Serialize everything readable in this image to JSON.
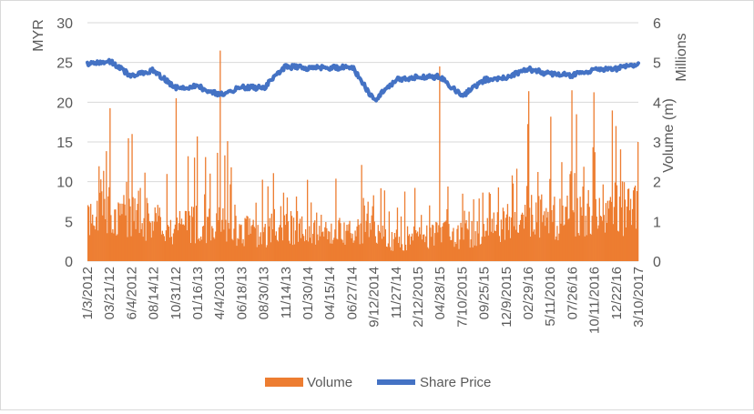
{
  "chart_data": {
    "type": "bar+line",
    "title": "",
    "ylabel_left": "MYR",
    "ylabel_right": "Volume (m)",
    "ylabel_right_units": "Millions",
    "ylim_left": [
      0,
      30
    ],
    "yticks_left": [
      "0",
      "5",
      "10",
      "15",
      "20",
      "25",
      "30"
    ],
    "ylim_right": [
      0,
      6
    ],
    "yticks_right": [
      "0",
      "1",
      "2",
      "3",
      "4",
      "5",
      "6"
    ],
    "grid": true,
    "legend_position": "bottom",
    "x_tick_labels": [
      "1/3/2012",
      "03/21/12",
      "6/4/2012",
      "08/14/12",
      "10/31/12",
      "01/16/13",
      "4/4/2013",
      "06/18/13",
      "08/30/13",
      "11/14/13",
      "01/30/14",
      "04/15/14",
      "06/27/14",
      "9/12/2014",
      "11/27/14",
      "2/12/2015",
      "04/28/15",
      "7/10/2015",
      "09/25/15",
      "12/9/2015",
      "02/29/16",
      "5/11/2016",
      "07/26/16",
      "10/11/2016",
      "12/22/16",
      "3/10/2017"
    ],
    "series": [
      {
        "name": "Volume",
        "type": "bar",
        "axis": "right",
        "color": "#ED7D31",
        "x": [
          "1/3/2012",
          "03/21/12",
          "6/4/2012",
          "08/14/12",
          "10/31/12",
          "01/16/13",
          "4/4/2013",
          "06/18/13",
          "08/30/13",
          "11/14/13",
          "01/30/14",
          "04/15/14",
          "06/27/14",
          "9/12/2014",
          "11/27/14",
          "2/12/2015",
          "04/28/15",
          "7/10/2015",
          "09/25/15",
          "12/9/2015",
          "02/29/16",
          "5/11/2016",
          "07/26/16",
          "10/11/2016",
          "12/22/16",
          "3/10/2017"
        ],
        "base_values": [
          1.1,
          1.3,
          1.2,
          1.0,
          0.9,
          1.0,
          0.95,
          0.8,
          0.75,
          0.85,
          0.9,
          0.8,
          0.75,
          0.7,
          0.55,
          0.6,
          0.75,
          0.65,
          0.8,
          1.0,
          1.3,
          1.1,
          1.2,
          1.4,
          1.45,
          1.3
        ],
        "peaks": [
          {
            "x": "03/21/12",
            "value": 3.85
          },
          {
            "x": "6/4/2012",
            "value": 3.2
          },
          {
            "x": "10/31/12",
            "value": 4.1
          },
          {
            "x": "4/4/2013",
            "value": 5.3
          },
          {
            "x": "04/28/15",
            "value": 4.9
          },
          {
            "x": "02/29/16",
            "value": 3.45
          },
          {
            "x": "07/26/16",
            "value": 4.3
          },
          {
            "x": "10/11/2016",
            "value": 4.25
          },
          {
            "x": "12/22/16",
            "value": 3.4
          },
          {
            "x": "3/10/2017",
            "value": 3.0
          }
        ]
      },
      {
        "name": "Share Price",
        "type": "line",
        "axis": "left",
        "color": "#4472C4",
        "x": [
          "1/3/2012",
          "03/21/12",
          "6/4/2012",
          "08/14/12",
          "10/31/12",
          "01/16/13",
          "4/4/2013",
          "06/18/13",
          "08/30/13",
          "11/14/13",
          "01/30/14",
          "04/15/14",
          "06/27/14",
          "9/12/2014",
          "11/27/14",
          "2/12/2015",
          "04/28/15",
          "7/10/2015",
          "09/25/15",
          "12/9/2015",
          "02/29/16",
          "5/11/2016",
          "07/26/16",
          "10/11/2016",
          "12/22/16",
          "3/10/2017"
        ],
        "values": [
          24.8,
          25.2,
          23.3,
          24.0,
          21.8,
          22.0,
          20.9,
          21.9,
          21.8,
          24.5,
          24.3,
          24.3,
          24.5,
          20.2,
          22.8,
          23.2,
          23.2,
          20.8,
          22.8,
          23.1,
          24.2,
          23.5,
          23.4,
          24.0,
          24.2,
          24.8
        ]
      }
    ]
  }
}
